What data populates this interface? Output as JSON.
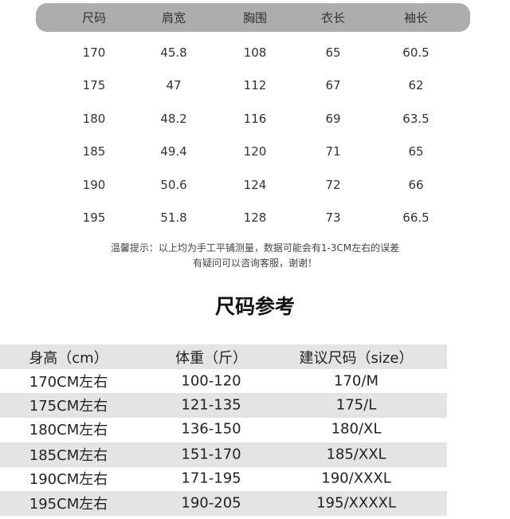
{
  "measurement_table": {
    "headers": [
      "尺码",
      "肩宽",
      "胸围",
      "衣长",
      "袖长"
    ],
    "rows": [
      [
        "170",
        "45.8",
        "108",
        "65",
        "60.5"
      ],
      [
        "175",
        "47",
        "112",
        "67",
        "62"
      ],
      [
        "180",
        "48.2",
        "116",
        "69",
        "63.5"
      ],
      [
        "185",
        "49.4",
        "120",
        "71",
        "65"
      ],
      [
        "190",
        "50.6",
        "124",
        "72",
        "66"
      ],
      [
        "195",
        "51.8",
        "128",
        "73",
        "66.5"
      ]
    ],
    "header_color": "#adadad"
  },
  "note": {
    "line1": "温馨提示：以上均为手工平铺测量，数据可能会有1-3CM左右的误差",
    "line2": "有疑问可以咨询客服，谢谢！"
  },
  "reference": {
    "title": "尺码参考",
    "headers": [
      "身高（cm）",
      "体重（斤）",
      "建议尺码（size）"
    ],
    "rows": [
      [
        "170CM左右",
        "100-120",
        "170/M"
      ],
      [
        "175CM左右",
        "121-135",
        "175/L"
      ],
      [
        "180CM左右",
        "136-150",
        "180/XL"
      ],
      [
        "185CM左右",
        "151-170",
        "185/XXL"
      ],
      [
        "190CM左右",
        "171-195",
        "190/XXXL"
      ],
      [
        "195CM左右",
        "190-205",
        "195/XXXXL"
      ]
    ],
    "stripe_color": "#e4e4e4"
  }
}
